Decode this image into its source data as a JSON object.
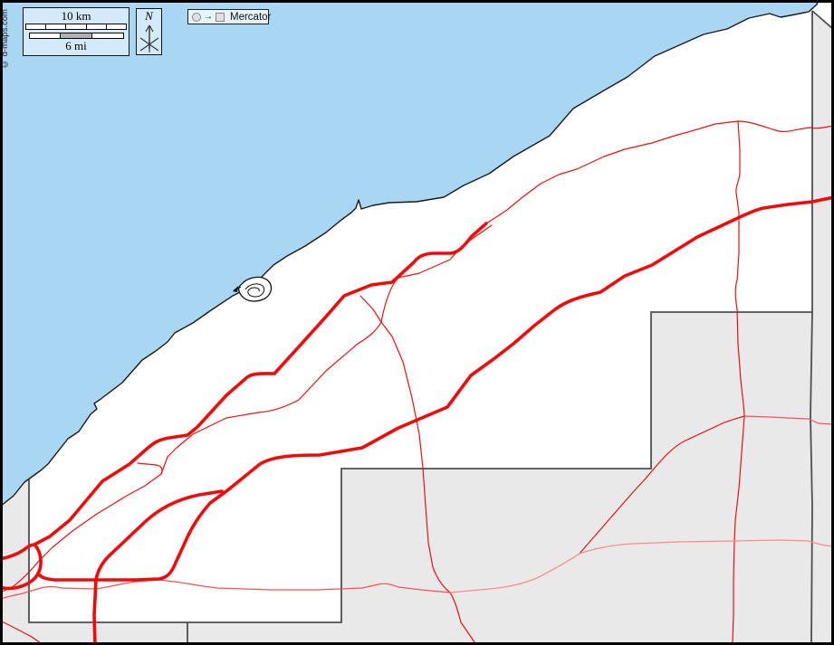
{
  "map": {
    "kind": "blank outline road map, lakeshore county",
    "credit": "© d-maps.com",
    "projection": {
      "label": "Mercator"
    },
    "north": {
      "label": "N"
    },
    "scale": {
      "km_label": "10 km",
      "mi_label": "6 mi",
      "km_segments": 5,
      "mi_segments": 3,
      "mi_shaded_segment": 1
    },
    "colors": {
      "water": "#a9d6f2",
      "land": "#ffffff",
      "neighbor_gray": "#e9e9e9",
      "coastline": "#1a1a1a",
      "boundary_gray": "#4f4f4f",
      "road_major": "#f00a0a",
      "road_minor": "#ea1111",
      "road_light": "#ff8a8a",
      "road_mid": "#ff5050",
      "legend_box_fill": "#d3eafa",
      "mercator_box_fill": "#e8f4fc",
      "frame": "#000000"
    }
  }
}
